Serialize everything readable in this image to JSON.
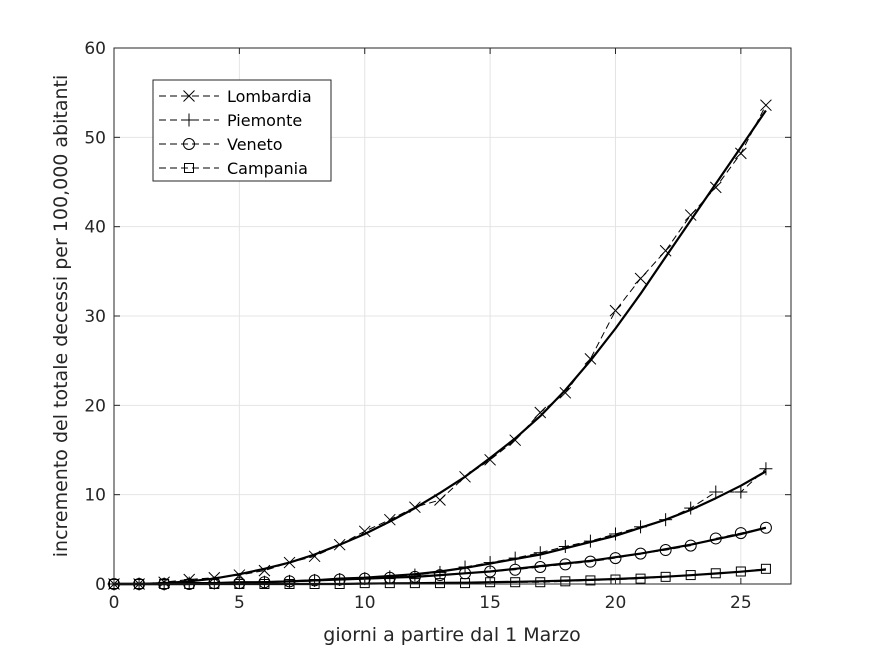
{
  "chart_data": {
    "type": "line",
    "xlabel": "giorni a partire dal 1 Marzo",
    "ylabel": "incremento del totale decessi per 100,000 abitanti",
    "xlim": [
      0,
      27
    ],
    "ylim": [
      0,
      60
    ],
    "xticks": [
      0,
      5,
      10,
      15,
      20,
      25
    ],
    "yticks": [
      0,
      10,
      20,
      30,
      40,
      50,
      60
    ],
    "grid": true,
    "legend_position": "top-left",
    "x": [
      0,
      1,
      2,
      3,
      4,
      5,
      6,
      7,
      8,
      9,
      10,
      11,
      12,
      13,
      14,
      15,
      16,
      17,
      18,
      19,
      20,
      21,
      22,
      23,
      24,
      25,
      26
    ],
    "series": [
      {
        "name": "Lombardia",
        "marker": "x",
        "values": [
          0,
          0,
          0.2,
          0.5,
          0.7,
          1.0,
          1.5,
          2.4,
          3.1,
          4.4,
          5.9,
          7.2,
          8.6,
          9.4,
          12.0,
          13.9,
          16.1,
          19.2,
          21.4,
          25.2,
          30.6,
          34.2,
          37.3,
          41.3,
          44.4,
          48.2,
          53.6
        ],
        "fit": [
          0,
          0,
          0.1,
          0.3,
          0.6,
          1.1,
          1.7,
          2.4,
          3.3,
          4.4,
          5.6,
          7.0,
          8.5,
          10.2,
          12.0,
          14.1,
          16.3,
          18.8,
          21.7,
          25.0,
          28.6,
          32.5,
          36.6,
          40.7,
          44.8,
          48.9,
          53.0
        ],
        "color": "#000000"
      },
      {
        "name": "Piemonte",
        "marker": "+",
        "values": [
          0,
          0,
          0,
          0.1,
          0.1,
          0.2,
          0.2,
          0.3,
          0.4,
          0.5,
          0.6,
          0.8,
          1.0,
          1.3,
          1.9,
          2.4,
          2.9,
          3.5,
          4.2,
          4.8,
          5.6,
          6.4,
          7.2,
          8.5,
          10.3,
          10.3,
          12.9
        ],
        "fit": [
          0,
          0,
          0,
          0.1,
          0.1,
          0.2,
          0.2,
          0.3,
          0.4,
          0.6,
          0.7,
          0.9,
          1.1,
          1.4,
          1.8,
          2.3,
          2.8,
          3.3,
          4.0,
          4.7,
          5.4,
          6.3,
          7.2,
          8.3,
          9.6,
          11.0,
          12.6
        ],
        "color": "#000000"
      },
      {
        "name": "Veneto",
        "marker": "o",
        "values": [
          0,
          0,
          0,
          0,
          0.1,
          0.1,
          0.2,
          0.3,
          0.4,
          0.5,
          0.6,
          0.7,
          0.8,
          1.0,
          1.2,
          1.4,
          1.6,
          1.9,
          2.2,
          2.5,
          2.9,
          3.4,
          3.8,
          4.3,
          5.1,
          5.7,
          6.3
        ],
        "fit": [
          0,
          0,
          0,
          0,
          0.1,
          0.1,
          0.2,
          0.3,
          0.4,
          0.5,
          0.6,
          0.7,
          0.8,
          1.0,
          1.2,
          1.4,
          1.7,
          2.0,
          2.3,
          2.6,
          3.0,
          3.4,
          3.9,
          4.4,
          5.0,
          5.6,
          6.3
        ],
        "color": "#000000"
      },
      {
        "name": "Campania",
        "marker": "square",
        "values": [
          0,
          0,
          0,
          0,
          0,
          0,
          0,
          0,
          0,
          0,
          0.1,
          0.1,
          0.1,
          0.1,
          0.1,
          0.2,
          0.2,
          0.2,
          0.3,
          0.4,
          0.5,
          0.6,
          0.8,
          1.0,
          1.2,
          1.4,
          1.7
        ],
        "fit": [
          0,
          0,
          0,
          0,
          0,
          0,
          0,
          0,
          0,
          0,
          0.05,
          0.07,
          0.09,
          0.12,
          0.15,
          0.2,
          0.25,
          0.3,
          0.38,
          0.46,
          0.56,
          0.68,
          0.82,
          0.98,
          1.17,
          1.38,
          1.62
        ],
        "color": "#000000"
      }
    ]
  }
}
